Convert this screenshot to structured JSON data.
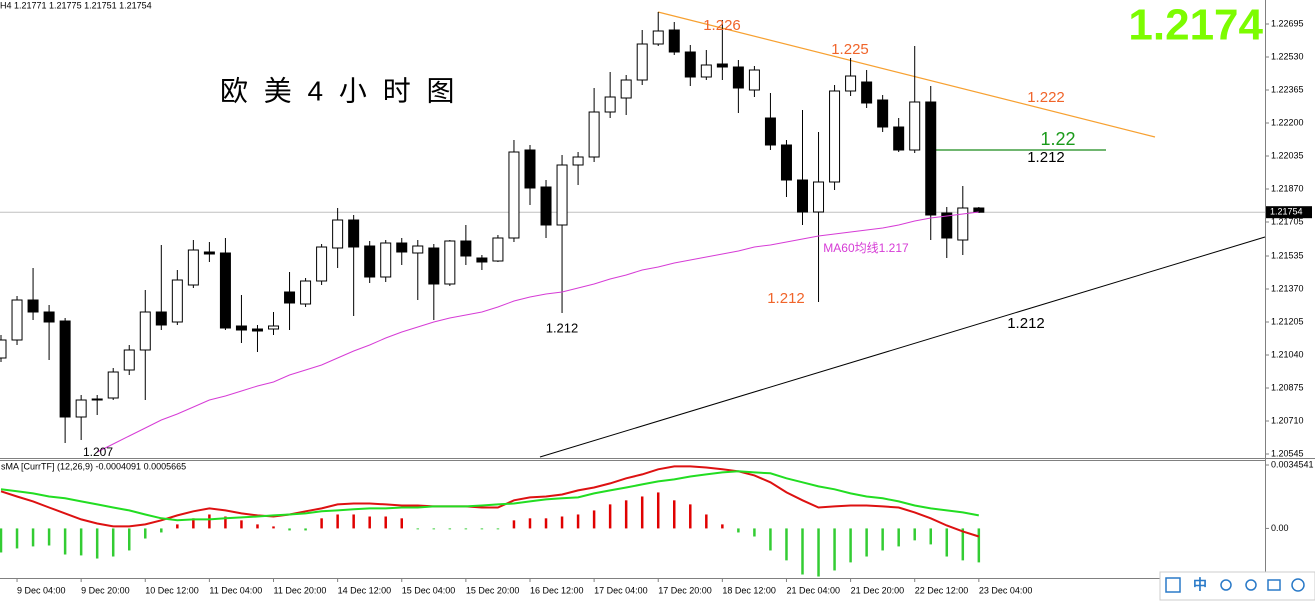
{
  "chart_data": [
    {
      "type": "candlestick",
      "title": "欧 美 4 小 时 图",
      "info": "H4  1.21771 1.21775 1.21751 1.21754",
      "big_price": "1.2174",
      "current_price": 1.21754,
      "categories": [
        null,
        "9 Dec 04:00",
        null,
        null,
        null,
        "9 Dec 20:00",
        null,
        null,
        null,
        "10 Dec 12:00",
        null,
        null,
        null,
        "11 Dec 04:00",
        null,
        null,
        null,
        "11 Dec 20:00",
        null,
        null,
        null,
        "14 Dec 12:00",
        null,
        null,
        null,
        "15 Dec 04:00",
        null,
        null,
        null,
        "15 Dec 20:00",
        null,
        null,
        null,
        "16 Dec 12:00",
        null,
        null,
        null,
        "17 Dec 04:00",
        null,
        null,
        null,
        "17 Dec 20:00",
        null,
        null,
        null,
        "18 Dec 12:00",
        null,
        null,
        null,
        "21 Dec 04:00",
        null,
        null,
        null,
        "21 Dec 20:00",
        null,
        null,
        null,
        "22 Dec 12:00",
        null,
        null,
        null,
        "23 Dec 04:00"
      ],
      "open": [
        1.21025,
        1.21115,
        1.21315,
        1.21255,
        1.2121,
        1.2073,
        1.2082,
        1.20825,
        1.20965,
        1.21065,
        1.21255,
        1.21205,
        1.2139,
        1.21555,
        1.2155,
        1.21185,
        1.2117,
        1.2117,
        1.21355,
        1.21295,
        1.2141,
        1.21575,
        1.21715,
        1.21585,
        1.2143,
        1.216,
        1.2155,
        1.21575,
        1.21395,
        1.2161,
        1.21525,
        1.2151,
        1.21625,
        1.22065,
        1.2188,
        1.2169,
        1.2199,
        1.2203,
        1.22255,
        1.22325,
        1.22415,
        1.22595,
        1.22665,
        1.22555,
        1.2243,
        1.22495,
        1.2248,
        1.22365,
        1.22225,
        1.2209,
        1.21915,
        1.21755,
        1.21905,
        1.2236,
        1.22405,
        1.22315,
        1.2218,
        1.22065,
        1.22305,
        1.2175,
        1.21615,
        1.21775
      ],
      "high": [
        1.2114,
        1.21335,
        1.21475,
        1.2129,
        1.21225,
        1.2084,
        1.2084,
        1.20975,
        1.2109,
        1.21365,
        1.2159,
        1.21465,
        1.21615,
        1.21605,
        1.21625,
        1.2134,
        1.2119,
        1.21255,
        1.21455,
        1.21425,
        1.21595,
        1.21775,
        1.2174,
        1.2161,
        1.21615,
        1.21625,
        1.21615,
        1.21595,
        1.21615,
        1.2169,
        1.2154,
        1.2164,
        1.22115,
        1.2209,
        1.21915,
        1.2204,
        1.22055,
        1.22375,
        1.22455,
        1.2244,
        1.22665,
        1.22755,
        1.22705,
        1.2259,
        1.22565,
        1.22715,
        1.22515,
        1.22485,
        1.2235,
        1.22115,
        1.22265,
        1.22155,
        1.2239,
        1.22525,
        1.22465,
        1.2234,
        1.22225,
        1.22585,
        1.22385,
        1.2178,
        1.21885,
        1.2178
      ],
      "low": [
        1.21005,
        1.2109,
        1.21215,
        1.21015,
        1.206,
        1.20615,
        1.2074,
        1.20815,
        1.2094,
        1.20815,
        1.21165,
        1.2119,
        1.21375,
        1.21505,
        1.21165,
        1.211,
        1.21055,
        1.2114,
        1.21165,
        1.2128,
        1.2139,
        1.21475,
        1.21235,
        1.214,
        1.21405,
        1.2149,
        1.21315,
        1.21215,
        1.21385,
        1.2149,
        1.21465,
        1.21505,
        1.21605,
        1.2179,
        1.21625,
        1.2125,
        1.2189,
        1.22005,
        1.22225,
        1.2224,
        1.2239,
        1.22585,
        1.2254,
        1.22385,
        1.22415,
        1.22415,
        1.2225,
        1.2233,
        1.22065,
        1.2183,
        1.2169,
        1.21305,
        1.21865,
        1.22335,
        1.22275,
        1.22155,
        1.22055,
        1.2205,
        1.21615,
        1.21525,
        1.2154,
        1.2175
      ],
      "close": [
        1.21115,
        1.21315,
        1.21255,
        1.21205,
        1.2073,
        1.20815,
        1.20815,
        1.20955,
        1.21065,
        1.21255,
        1.2119,
        1.21415,
        1.21565,
        1.21545,
        1.21175,
        1.21165,
        1.2116,
        1.21185,
        1.213,
        1.2141,
        1.2158,
        1.21715,
        1.2158,
        1.2143,
        1.216,
        1.21555,
        1.21585,
        1.21395,
        1.2161,
        1.21535,
        1.21505,
        1.21625,
        1.22055,
        1.21875,
        1.2169,
        1.2199,
        1.2203,
        1.22255,
        1.2233,
        1.22415,
        1.22595,
        1.2266,
        1.22555,
        1.2243,
        1.2249,
        1.2248,
        1.22375,
        1.22465,
        1.2209,
        1.21915,
        1.21755,
        1.21905,
        1.2236,
        1.22435,
        1.223,
        1.2218,
        1.22065,
        1.22305,
        1.2174,
        1.21625,
        1.21775,
        1.21754
      ],
      "ma": {
        "color": "#d63cd6",
        "values": [
          null,
          null,
          null,
          null,
          null,
          null,
          1.20555,
          1.20595,
          1.20635,
          1.20675,
          1.20715,
          1.20745,
          1.2078,
          1.20815,
          1.20835,
          1.2086,
          1.20885,
          1.20905,
          1.2094,
          1.20965,
          1.2099,
          1.21025,
          1.2106,
          1.2109,
          1.21125,
          1.21155,
          1.2118,
          1.21205,
          1.21225,
          1.2124,
          1.21255,
          1.2128,
          1.2131,
          1.2133,
          1.21345,
          1.21355,
          1.21375,
          1.21395,
          1.2142,
          1.2144,
          1.21465,
          1.2148,
          1.215,
          1.21515,
          1.2153,
          1.21545,
          1.2156,
          1.2158,
          1.2159,
          1.21605,
          1.2162,
          1.21635,
          1.21645,
          1.21655,
          1.21665,
          1.21675,
          1.2169,
          1.2171,
          1.21725,
          1.21735,
          1.21745,
          1.21755
        ]
      },
      "annotations": [
        {
          "text": "1.226",
          "color": "#f0642a"
        },
        {
          "text": "1.225",
          "color": "#f0642a"
        },
        {
          "text": "1.222",
          "color": "#f0642a"
        },
        {
          "text": "1.22",
          "color": "#1a9a1a"
        },
        {
          "text": "1.212",
          "color": "#000000"
        },
        {
          "text": "1.212",
          "color": "#000000"
        },
        {
          "text": "1.212",
          "color": "#f0642a"
        },
        {
          "text": "1.212",
          "color": "#000000"
        },
        {
          "text": "MA60均线1.217",
          "color": "#d63cd6"
        },
        {
          "text": "1.207",
          "color": "#000000"
        }
      ],
      "ylim": [
        1.20525,
        1.22815
      ],
      "yticks": [
        1.22695,
        {
          "value": 1.2253,
          "label": "1.22530"
        },
        1.22365,
        {
          "value": 1.222,
          "label": "1.22200"
        },
        1.22035,
        {
          "value": 1.2187,
          "label": "1.21870"
        },
        1.21705,
        1.21535,
        {
          "value": 1.2137,
          "label": "1.21370"
        },
        1.21205,
        {
          "value": 1.2104,
          "label": "1.21040"
        },
        1.20875,
        {
          "value": 1.2071,
          "label": "1.20710"
        },
        1.20545
      ]
    },
    {
      "type": "macd",
      "title": "sMA [CurrTF] (12,26,9) -0.0004091 0.0005665",
      "histogram": {
        "up_color": "#e00000",
        "down_color": "#33cc33",
        "values": [
          -0.00131,
          -0.00109,
          -0.00098,
          -0.00093,
          -0.00142,
          -0.00147,
          -0.00164,
          -0.00153,
          -0.0012,
          -0.00055,
          -0.00022,
          0.00022,
          0.00055,
          0.00076,
          0.00065,
          0.00044,
          0.00022,
          0.00011,
          -0.00011,
          -0.00011,
          0.00055,
          0.00076,
          0.00076,
          0.00065,
          0.00065,
          0.00055,
          -5e-05,
          -5e-05,
          -5e-05,
          -5e-05,
          -5e-05,
          -5e-05,
          0.00044,
          0.00055,
          0.00055,
          0.00065,
          0.00076,
          0.00098,
          0.00131,
          0.00153,
          0.00174,
          0.00196,
          0.00153,
          0.00131,
          0.00076,
          0.00022,
          -0.00022,
          -0.00044,
          -0.0012,
          -0.00174,
          -0.00251,
          -0.00262,
          -0.00229,
          -0.00185,
          -0.00153,
          -0.0012,
          -0.00098,
          -0.00065,
          -0.00087,
          -0.00153,
          -0.00174,
          -0.00185
        ]
      },
      "series": [
        {
          "color": "#dd1111",
          "values": [
            0.00202,
            0.00174,
            0.00147,
            0.00114,
            0.00082,
            0.00049,
            0.00027,
            0.00011,
            0.00011,
            0.00022,
            0.00044,
            0.00071,
            0.00093,
            0.00109,
            0.00098,
            0.00082,
            0.00071,
            0.00065,
            0.00076,
            0.00093,
            0.00109,
            0.00131,
            0.00136,
            0.00136,
            0.00131,
            0.00125,
            0.00125,
            0.0012,
            0.0012,
            0.0012,
            0.00114,
            0.00114,
            0.00153,
            0.00169,
            0.00174,
            0.00185,
            0.00207,
            0.00223,
            0.00245,
            0.00273,
            0.00294,
            0.00322,
            0.00338,
            0.00338,
            0.00332,
            0.00322,
            0.00311,
            0.00289,
            0.00251,
            0.00196,
            0.00153,
            0.00114,
            0.0012,
            0.00125,
            0.00125,
            0.0012,
            0.00114,
            0.00087,
            0.00055,
            0.00016,
            -0.00016,
            -0.00044
          ]
        },
        {
          "color": "#22dd22",
          "values": [
            0.00213,
            0.00202,
            0.00191,
            0.00174,
            0.00164,
            0.00147,
            0.00131,
            0.00114,
            0.00098,
            0.00076,
            0.00055,
            0.00044,
            0.00049,
            0.00049,
            0.00055,
            0.0006,
            0.00065,
            0.00071,
            0.00076,
            0.00082,
            0.00093,
            0.00098,
            0.00104,
            0.00109,
            0.00109,
            0.00114,
            0.00114,
            0.0012,
            0.0012,
            0.0012,
            0.00125,
            0.00131,
            0.00136,
            0.00147,
            0.00158,
            0.00164,
            0.00169,
            0.00191,
            0.00207,
            0.00223,
            0.0024,
            0.00256,
            0.00267,
            0.00283,
            0.00294,
            0.00305,
            0.00311,
            0.00305,
            0.003,
            0.00273,
            0.00251,
            0.00229,
            0.00213,
            0.00191,
            0.00174,
            0.00164,
            0.00147,
            0.00125,
            0.00109,
            0.00098,
            0.00087,
            0.00071
          ]
        }
      ],
      "ylim": [
        -0.0027,
        0.0034541
      ],
      "yticks": [
        0.0034541,
        {
          "value": 0,
          "label": "0.00"
        }
      ]
    }
  ],
  "toolbar": {
    "language": "中"
  }
}
